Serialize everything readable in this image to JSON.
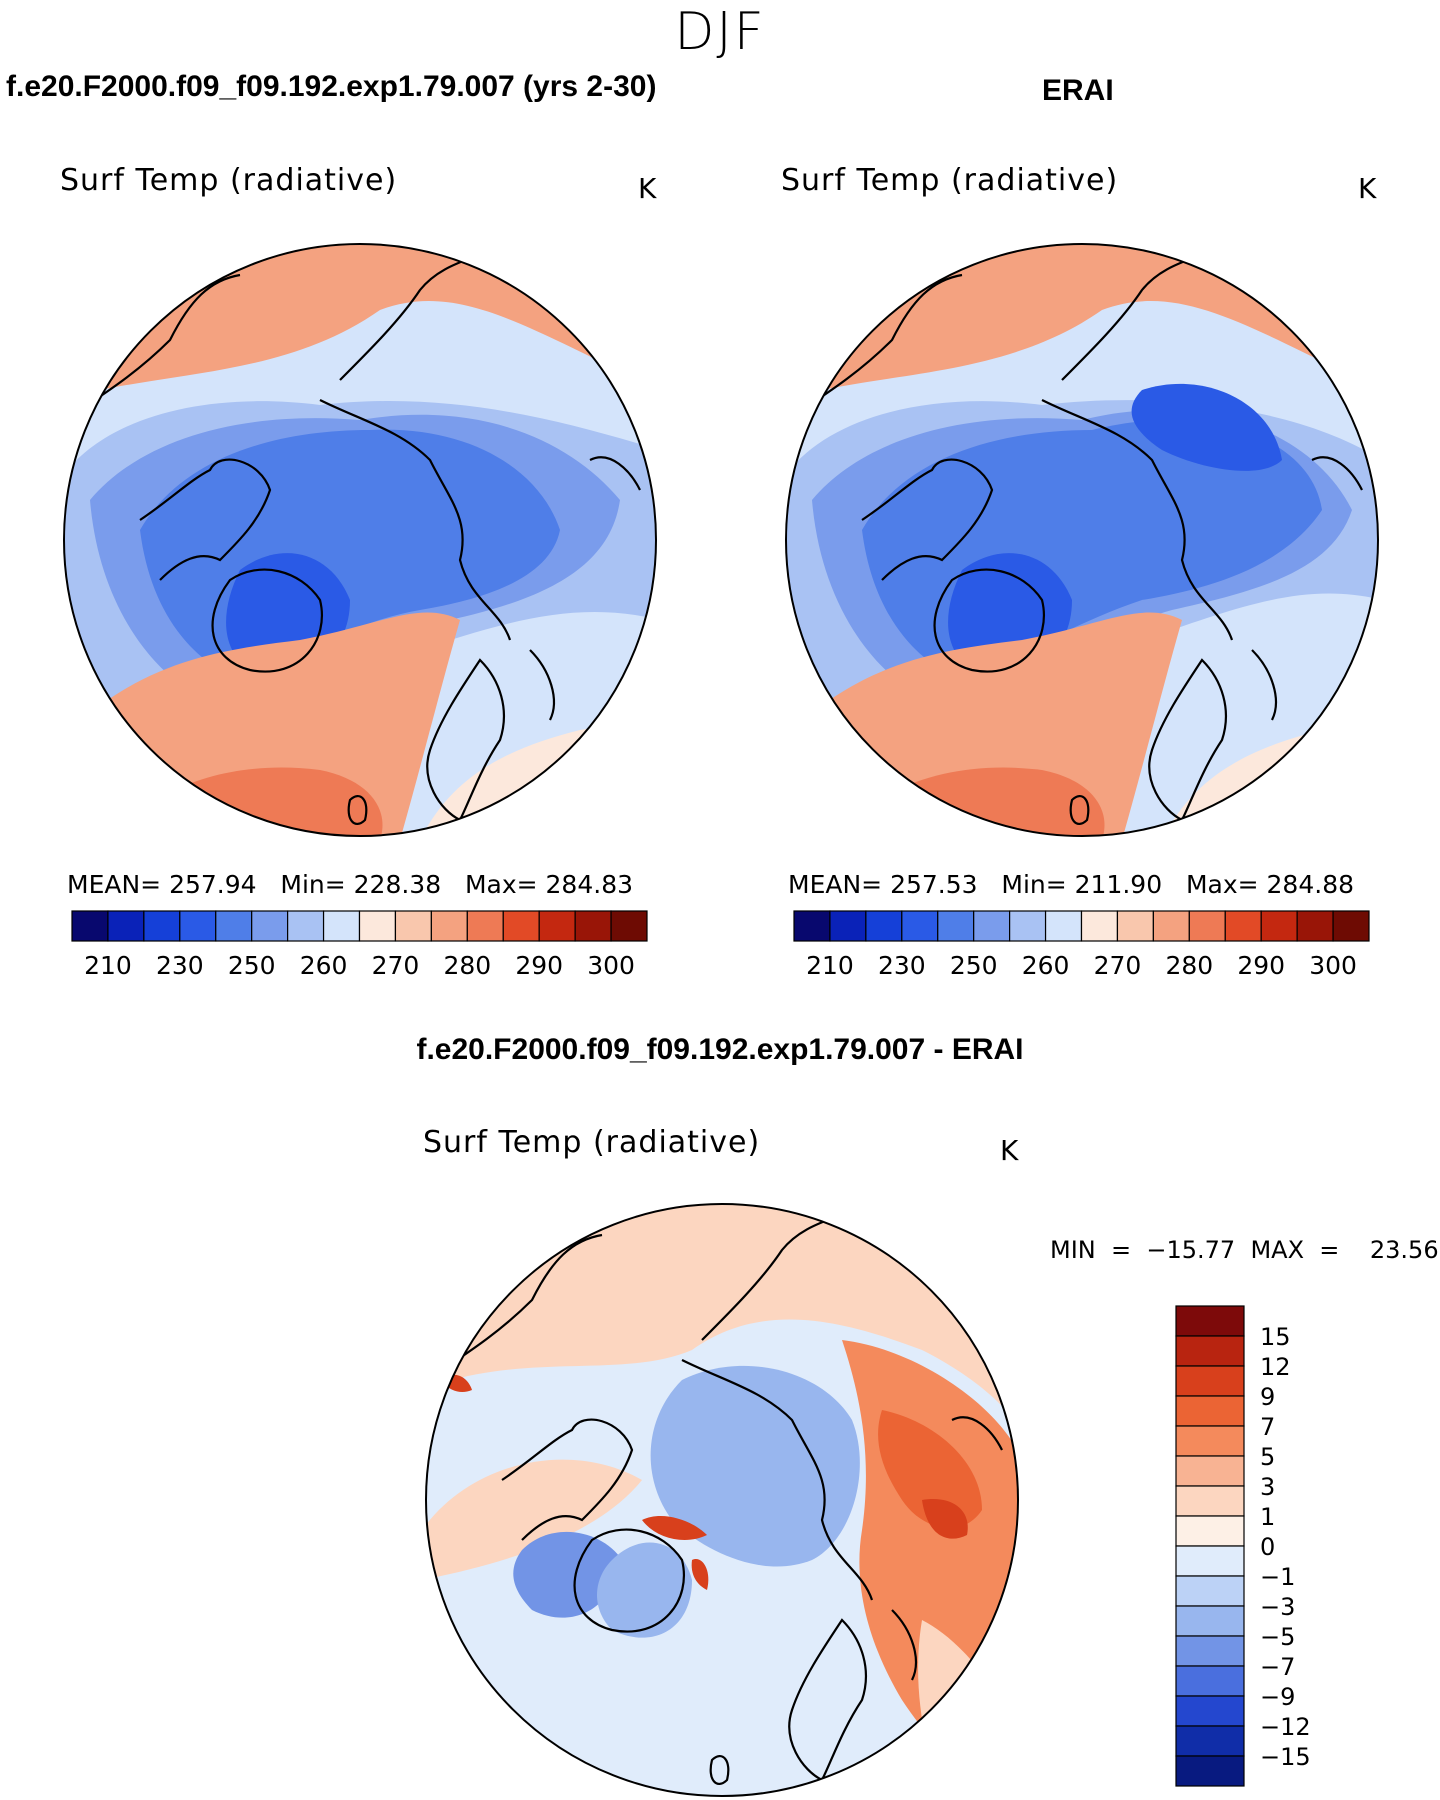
{
  "figure": {
    "season": "DJF",
    "panels": [
      {
        "title": "f.e20.F2000.f09_f09.192.exp1.79.007 (yrs 2-30)",
        "variable": "Surf Temp (radiative)",
        "units": "K",
        "stats_text": "MEAN= 257.94   Min= 228.38   Max= 284.83",
        "stats": {
          "mean": 257.94,
          "min": 228.38,
          "max": 284.83
        }
      },
      {
        "title": "ERAI",
        "variable": "Surf Temp (radiative)",
        "units": "K",
        "stats_text": "MEAN= 257.53   Min= 211.90   Max= 284.88",
        "stats": {
          "mean": 257.53,
          "min": 211.9,
          "max": 284.88
        }
      },
      {
        "title": "f.e20.F2000.f09_f09.192.exp1.79.007 - ERAI",
        "variable": "Surf Temp (radiative)",
        "units": "K",
        "stats_text": "MIN  =  −15.77  MAX  =    23.56",
        "stats": {
          "min": -15.77,
          "max": 23.56
        }
      }
    ]
  },
  "chart_data": {
    "type": "heatmap",
    "projection": "north-polar-stereographic",
    "abs_colorbar": {
      "labels": [
        "210",
        "230",
        "250",
        "260",
        "270",
        "280",
        "290",
        "300"
      ],
      "colors": [
        "#08086e",
        "#0a22b8",
        "#1540d8",
        "#2a5ae6",
        "#4f7ee8",
        "#7a9cec",
        "#a9c2f3",
        "#d4e4fb",
        "#fce8dc",
        "#f9c7ad",
        "#f4a280",
        "#ee7a55",
        "#e24a26",
        "#c42810",
        "#991507",
        "#6e0b03"
      ]
    },
    "diff_colorbar": {
      "labels": [
        "15",
        "12",
        "9",
        "7",
        "5",
        "3",
        "1",
        "0",
        "−1",
        "−3",
        "−5",
        "−7",
        "−9",
        "−12",
        "−15"
      ],
      "colors": [
        "#7d0a0a",
        "#b82410",
        "#d8401c",
        "#eb6434",
        "#f48a5c",
        "#f8b393",
        "#fcd6c0",
        "#fdf0e6",
        "#e0ecfb",
        "#bcd2f6",
        "#98b6ee",
        "#7294e6",
        "#4a6fde",
        "#2447cf",
        "#102da8",
        "#081a80"
      ]
    }
  }
}
